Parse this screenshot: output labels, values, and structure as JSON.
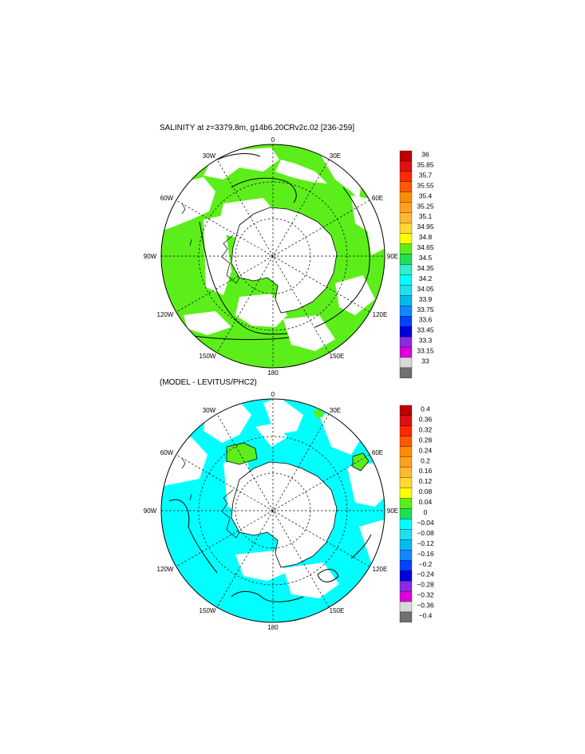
{
  "panels": [
    {
      "title": "SALINITY at z=3379.8m, g14b6.20CRv2c.02 [236-259]",
      "center": [
        342,
        321
      ],
      "radius": 140,
      "lon_labels": [
        "0",
        "30E",
        "60E",
        "90E",
        "120E",
        "150E",
        "180",
        "150W",
        "120W",
        "90W",
        "60W",
        "30W"
      ],
      "colorbar": {
        "labels": [
          "36",
          "35.85",
          "35.7",
          "35.55",
          "35.4",
          "35.25",
          "35.1",
          "34.95",
          "34.8",
          "34.65",
          "34.5",
          "34.35",
          "34.2",
          "34.05",
          "33.9",
          "33.75",
          "33.6",
          "33.45",
          "33.3",
          "33.15",
          "33"
        ],
        "colors": [
          "#c00000",
          "#e01010",
          "#ff2a00",
          "#ff5a00",
          "#ff8c00",
          "#ffa020",
          "#ffb830",
          "#ffd830",
          "#ffff00",
          "#5cee1a",
          "#22dd55",
          "#33eecc",
          "#00ffff",
          "#22ddee",
          "#00bbee",
          "#1188ff",
          "#0044ff",
          "#0000dd",
          "#8a2be2",
          "#dd00dd",
          "#d8d8d8",
          "#707070"
        ]
      },
      "field_colors": {
        "ocean": "#5cee1a",
        "mask": "#ffffff",
        "land": "#ffffff"
      }
    },
    {
      "title": "(MODEL - LEVITUS/PHC2)",
      "center": [
        342,
        640
      ],
      "radius": 140,
      "lon_labels": [
        "0",
        "30E",
        "60E",
        "90E",
        "120E",
        "150E",
        "180",
        "150W",
        "120W",
        "90W",
        "60W",
        "30W"
      ],
      "colorbar": {
        "labels": [
          "0.4",
          "0.36",
          "0.32",
          "0.28",
          "0.24",
          "0.2",
          "0.16",
          "0.12",
          "0.08",
          "0.04",
          "0",
          "−0.04",
          "−0.08",
          "−0.12",
          "−0.16",
          "−0.2",
          "−0.24",
          "−0.28",
          "−0.32",
          "−0.36",
          "−0.4"
        ],
        "colors": [
          "#c00000",
          "#e01010",
          "#ff2a00",
          "#ff5a00",
          "#ff8c00",
          "#ffa020",
          "#ffb830",
          "#ffd830",
          "#ffff00",
          "#5cee1a",
          "#22dd55",
          "#00ffff",
          "#22ddee",
          "#00bbee",
          "#1188ff",
          "#0044ff",
          "#0000dd",
          "#8a2be2",
          "#dd00dd",
          "#d8d8d8",
          "#707070"
        ]
      },
      "field_colors": {
        "ocean": "#00ffff",
        "patch": "#5cee1a",
        "mask": "#ffffff",
        "land": "#ffffff"
      }
    }
  ]
}
